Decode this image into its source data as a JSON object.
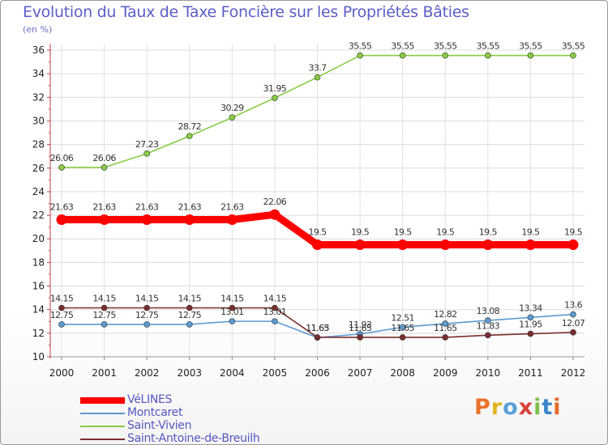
{
  "title": "Evolution du Taux de Taxe Foncière sur les Propriétés Bâties",
  "unit": "(en %)",
  "logo": {
    "text": "Proxiti",
    "letter_colors": [
      "#e9722c",
      "#e0b51e",
      "#5aa0d8",
      "#d8403a",
      "#7cc04a",
      "#3a86c8",
      "#e46a2a"
    ]
  },
  "chart_data": {
    "type": "line",
    "x": [
      2000,
      2001,
      2002,
      2003,
      2004,
      2005,
      2006,
      2007,
      2008,
      2009,
      2010,
      2011,
      2012
    ],
    "ylim": [
      10,
      36
    ],
    "yticks": [
      10,
      12,
      14,
      16,
      18,
      20,
      22,
      24,
      26,
      28,
      30,
      32,
      34,
      36
    ],
    "grid": true,
    "legend_position": "bottom-left",
    "series": [
      {
        "name": "VéLINES",
        "color": "#ff0000",
        "values": [
          21.63,
          21.63,
          21.63,
          21.63,
          21.63,
          22.06,
          19.5,
          19.5,
          19.5,
          19.5,
          19.5,
          19.5,
          19.5
        ],
        "labels": [
          "21.63",
          "21.63",
          "21.63",
          "21.63",
          "21.63",
          "22.06",
          "19.5",
          "19.5",
          "19.5",
          "19.5",
          "19.5",
          "19.5",
          "19.5"
        ]
      },
      {
        "name": "Montcaret",
        "color": "#5b9bd0",
        "values": [
          12.75,
          12.75,
          12.75,
          12.75,
          13.01,
          13.01,
          11.63,
          11.93,
          12.51,
          12.82,
          13.08,
          13.34,
          13.6
        ],
        "labels": [
          "12.75",
          "12.75",
          "12.75",
          "12.75",
          "13.01",
          "13.01",
          "11.63",
          "11.93",
          "12.51",
          "12.82",
          "13.08",
          "13.34",
          "13.6"
        ]
      },
      {
        "name": "Saint-Vivien",
        "color": "#88cc44",
        "values": [
          26.06,
          26.06,
          27.23,
          28.72,
          30.29,
          31.95,
          33.7,
          35.55,
          35.55,
          35.55,
          35.55,
          35.55,
          35.55
        ],
        "labels": [
          "26.06",
          "26.06",
          "27.23",
          "28.72",
          "30.29",
          "31.95",
          "33.7",
          "35.55",
          "35.55",
          "35.55",
          "35.55",
          "35.55",
          "35.55"
        ]
      },
      {
        "name": "Saint-Antoine-de-Breuilh",
        "color": "#7a2e2e",
        "values": [
          14.15,
          14.15,
          14.15,
          14.15,
          14.15,
          14.15,
          11.65,
          11.65,
          11.65,
          11.65,
          11.83,
          11.95,
          12.07
        ],
        "labels": [
          "14.15",
          "14.15",
          "14.15",
          "14.15",
          "14.15",
          "14.15",
          "11.65",
          "11.65",
          "11.65",
          "11.65",
          "11.83",
          "11.95",
          "12.07"
        ]
      }
    ]
  }
}
